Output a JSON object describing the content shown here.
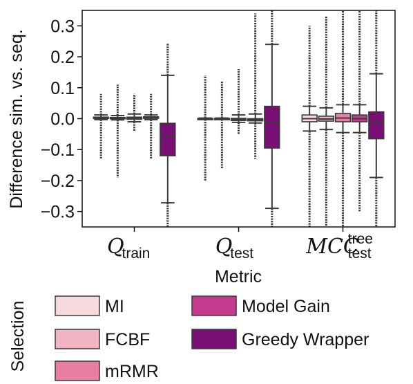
{
  "chart_data": {
    "type": "box",
    "ylabel": "Difference sim. vs. seq.",
    "xlabel": "Metric",
    "ylim": [
      -0.35,
      0.35
    ],
    "yticks": [
      0.3,
      0.2,
      0.1,
      0.0,
      -0.1,
      -0.2,
      -0.3
    ],
    "ytick_labels": [
      "0.3",
      "0.2",
      "0.1",
      "0.0",
      "−0.1",
      "−0.2",
      "−0.3"
    ],
    "categories": [
      {
        "main": "Q",
        "sub": "train",
        "sup": ""
      },
      {
        "main": "Q",
        "sub": "test",
        "sup": ""
      },
      {
        "main": "MCC",
        "sub": "test",
        "sup": "tree"
      }
    ],
    "legend_title": "Selection",
    "series": [
      {
        "name": "MI",
        "color": "#f7d8dc",
        "boxes": [
          {
            "q1": 0.001,
            "median": 0.003,
            "q3": 0.005,
            "whislo": -0.003,
            "whishi": 0.012,
            "flier_lo": -0.13,
            "flier_hi": 0.08
          },
          {
            "q1": 0.0,
            "median": 0.0,
            "q3": 0.001,
            "whislo": -0.002,
            "whishi": 0.002,
            "flier_lo": -0.2,
            "flier_hi": 0.14
          },
          {
            "q1": -0.01,
            "median": 0.0,
            "q3": 0.012,
            "whislo": -0.04,
            "whishi": 0.04,
            "flier_lo": -0.35,
            "flier_hi": 0.3
          }
        ]
      },
      {
        "name": "FCBF",
        "color": "#f0b4c2",
        "boxes": [
          {
            "q1": 0.0,
            "median": 0.002,
            "q3": 0.004,
            "whislo": -0.004,
            "whishi": 0.01,
            "flier_lo": -0.19,
            "flier_hi": 0.11
          },
          {
            "q1": 0.0,
            "median": 0.0,
            "q3": 0.001,
            "whislo": -0.002,
            "whishi": 0.002,
            "flier_lo": -0.16,
            "flier_hi": 0.12
          },
          {
            "q1": -0.008,
            "median": -0.001,
            "q3": 0.008,
            "whislo": -0.035,
            "whishi": 0.035,
            "flier_lo": -0.35,
            "flier_hi": 0.33
          }
        ]
      },
      {
        "name": "mRMR",
        "color": "#e97ea3",
        "boxes": [
          {
            "q1": -0.002,
            "median": 0.002,
            "q3": 0.005,
            "whislo": -0.01,
            "whishi": 0.015,
            "flier_lo": -0.04,
            "flier_hi": 0.08
          },
          {
            "q1": -0.006,
            "median": -0.002,
            "q3": 0.001,
            "whislo": -0.012,
            "whishi": 0.012,
            "flier_lo": -0.05,
            "flier_hi": 0.16
          },
          {
            "q1": -0.01,
            "median": 0.002,
            "q3": 0.017,
            "whislo": -0.045,
            "whishi": 0.045,
            "flier_lo": -0.35,
            "flier_hi": 0.35
          }
        ]
      },
      {
        "name": "Model Gain",
        "color": "#c43a91",
        "boxes": [
          {
            "q1": 0.001,
            "median": 0.003,
            "q3": 0.006,
            "whislo": -0.003,
            "whishi": 0.012,
            "flier_lo": -0.13,
            "flier_hi": 0.08
          },
          {
            "q1": -0.007,
            "median": -0.003,
            "q3": 0.0,
            "whislo": -0.014,
            "whishi": 0.015,
            "flier_lo": -0.13,
            "flier_hi": 0.34
          },
          {
            "q1": -0.01,
            "median": 0.0,
            "q3": 0.012,
            "whislo": -0.045,
            "whishi": 0.045,
            "flier_lo": -0.3,
            "flier_hi": 0.35
          }
        ]
      },
      {
        "name": "Greedy Wrapper",
        "color": "#7a0f75",
        "boxes": [
          {
            "q1": -0.12,
            "median": -0.055,
            "q3": -0.015,
            "whislo": -0.272,
            "whishi": 0.14,
            "flier_lo": -0.35,
            "flier_hi": 0.245
          },
          {
            "q1": -0.095,
            "median": -0.01,
            "q3": 0.04,
            "whislo": -0.29,
            "whishi": 0.24,
            "flier_lo": -0.35,
            "flier_hi": 0.35
          },
          {
            "q1": -0.065,
            "median": -0.01,
            "q3": 0.022,
            "whislo": -0.19,
            "whishi": 0.145,
            "flier_lo": -0.35,
            "flier_hi": 0.35
          }
        ]
      }
    ]
  }
}
